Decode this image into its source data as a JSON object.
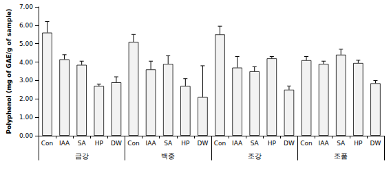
{
  "chart_data": {
    "type": "bar",
    "y_label": "Polyphenol (mg of GAE/g of sample)",
    "categories": [
      "Con",
      "IAA",
      "SA",
      "HP",
      "DW",
      "Con",
      "IAA",
      "SA",
      "HP",
      "DW",
      "Con",
      "IAA",
      "SA",
      "HP",
      "DW",
      "Con",
      "IAA",
      "SA",
      "HP",
      "DW"
    ],
    "group_labels": [
      "금강",
      "백중",
      "조강",
      "조품"
    ],
    "values": [
      5.6,
      4.15,
      3.85,
      2.7,
      2.9,
      5.1,
      3.6,
      3.9,
      2.7,
      2.1,
      5.5,
      3.7,
      3.5,
      4.2,
      2.5,
      4.1,
      3.9,
      4.4,
      3.95,
      2.85
    ],
    "errors": [
      0.6,
      0.25,
      0.2,
      0.1,
      0.3,
      0.4,
      0.45,
      0.45,
      0.4,
      1.7,
      0.45,
      0.6,
      0.25,
      0.1,
      0.2,
      0.2,
      0.15,
      0.3,
      0.15,
      0.15
    ],
    "color": "#f2f2f2",
    "ylim": [
      0,
      7
    ],
    "yticks": [
      {
        "value": 0,
        "label": "0.00"
      },
      {
        "value": 1,
        "label": "1.00"
      },
      {
        "value": 2,
        "label": "2.00"
      },
      {
        "value": 3,
        "label": "3.00"
      },
      {
        "value": 4,
        "label": "4.00"
      },
      {
        "value": 5,
        "label": "5.00"
      },
      {
        "value": 6,
        "label": "6.00"
      },
      {
        "value": 7,
        "label": "7.00"
      }
    ],
    "grid": false
  }
}
